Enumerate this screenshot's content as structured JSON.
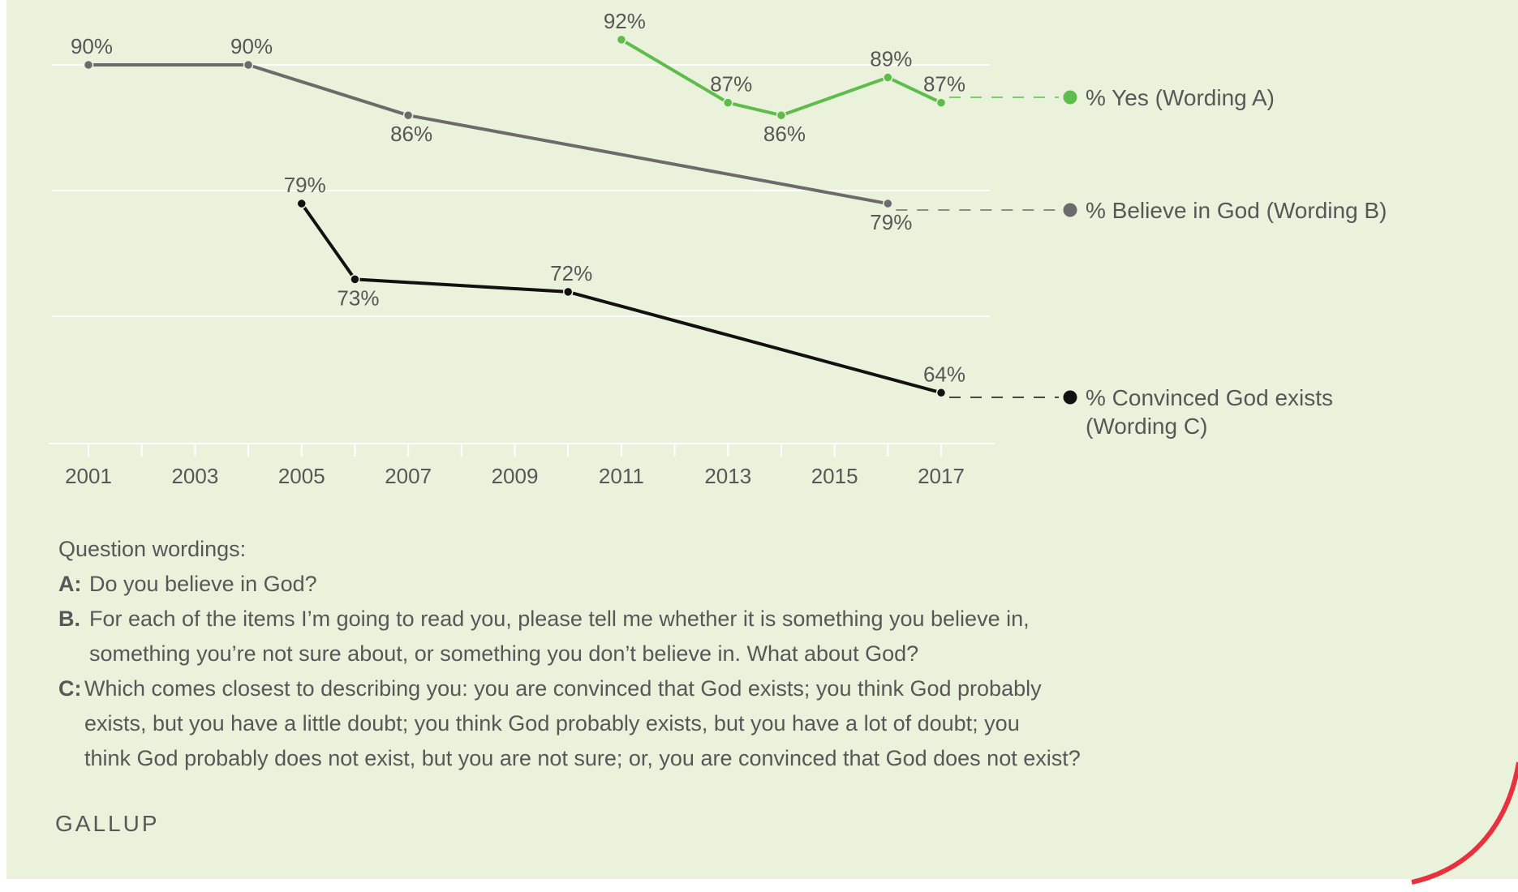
{
  "chart_data": {
    "type": "line",
    "xlim": [
      2001,
      2017
    ],
    "x_ticks": [
      "2001",
      "2003",
      "2005",
      "2007",
      "2009",
      "2011",
      "2013",
      "2015",
      "2017"
    ],
    "ylim": [
      60,
      95
    ],
    "grid": true,
    "legend_placement": "right, at end of each line",
    "series": [
      {
        "name": "% Yes (Wording A)",
        "color": "#5ebd4a",
        "x": [
          2011,
          2013,
          2014,
          2016,
          2017
        ],
        "y": [
          92,
          87,
          86,
          89,
          87
        ],
        "labels": [
          "92%",
          "87%",
          "86%",
          "89%",
          "87%"
        ],
        "label_pos": [
          "above",
          "above",
          "below",
          "above",
          "above"
        ]
      },
      {
        "name": "% Believe in God (Wording B)",
        "color": "#6b6b6b",
        "x": [
          2001,
          2004,
          2007,
          2016
        ],
        "y": [
          90,
          90,
          86,
          79
        ],
        "labels": [
          "90%",
          "90%",
          "86%",
          "79%"
        ],
        "label_pos": [
          "above",
          "above",
          "below",
          "below"
        ]
      },
      {
        "name": "% Convinced God exists (Wording C)",
        "name_lines": [
          "% Convinced God exists",
          "(Wording C)"
        ],
        "color": "#111111",
        "x": [
          2005,
          2006,
          2010,
          2017
        ],
        "y": [
          79,
          73,
          72,
          64
        ],
        "labels": [
          "79%",
          "73%",
          "72%",
          "64%"
        ],
        "label_pos": [
          "above",
          "below",
          "above",
          "above"
        ]
      }
    ]
  },
  "wordings": {
    "heading": "Question wordings:",
    "a_key": "A:",
    "a_text": "Do you believe in God?",
    "b_key": "B.",
    "b_line1": "For each of the items I’m going to read you, please tell me whether it is something you believe in,",
    "b_line2": "something you’re not sure about, or something you don’t believe in.  What about God?",
    "c_key": "C:",
    "c_line1": "Which comes closest to describing you: you are convinced that God exists; you think God probably",
    "c_line2": "exists, but you have a little doubt; you think God probably exists, but you have a lot of doubt; you",
    "c_line3": "think God probably does not exist, but you are not sure; or, you are convinced that God does not exist?"
  },
  "source": "GALLUP",
  "colors": {
    "background": "#ebf2dc",
    "gridline": "#ffffff",
    "text": "#575757",
    "corner_accent": "#e8313d"
  }
}
